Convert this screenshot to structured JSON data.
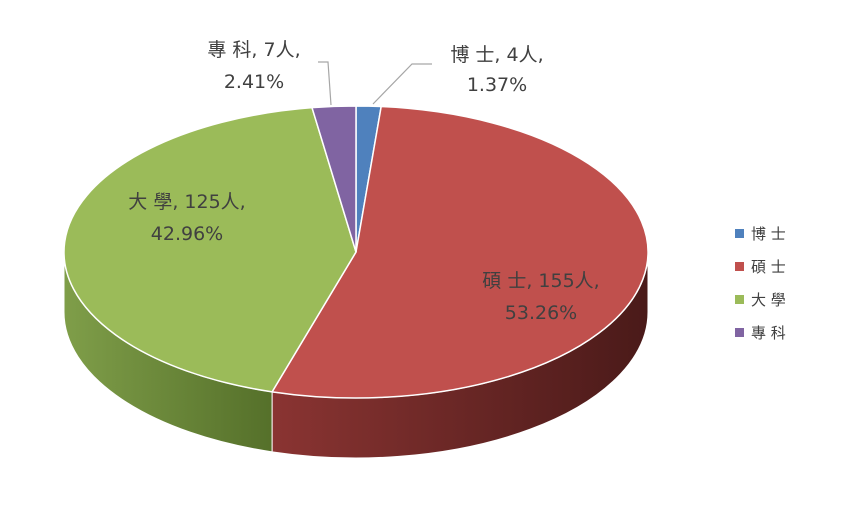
{
  "chart_data": {
    "type": "pie",
    "style": "3d",
    "title": "",
    "legend_position": "right",
    "categories": [
      "博 士",
      "碩 士",
      "大 學",
      "專 科"
    ],
    "values": [
      4,
      155,
      125,
      7
    ],
    "percents": [
      "1.37%",
      "53.26%",
      "42.96%",
      "2.41%"
    ],
    "colors": [
      "#4F81BD",
      "#C0504D",
      "#9BBB59",
      "#8064A2"
    ],
    "side_colors": [
      "#2E4E7A",
      "#6B2624",
      "#6B8C30",
      "#4E3A6E"
    ],
    "data_labels": [
      {
        "line1": "博 士, 4人,",
        "line2": "1.37%"
      },
      {
        "line1": "碩 士, 155人,",
        "line2": "53.26%"
      },
      {
        "line1": "大 學, 125人,",
        "line2": "42.96%"
      },
      {
        "line1": "專 科, 7人,",
        "line2": "2.41%"
      }
    ],
    "legend": [
      "博 士",
      "碩 士",
      "大 學",
      "專 科"
    ]
  }
}
